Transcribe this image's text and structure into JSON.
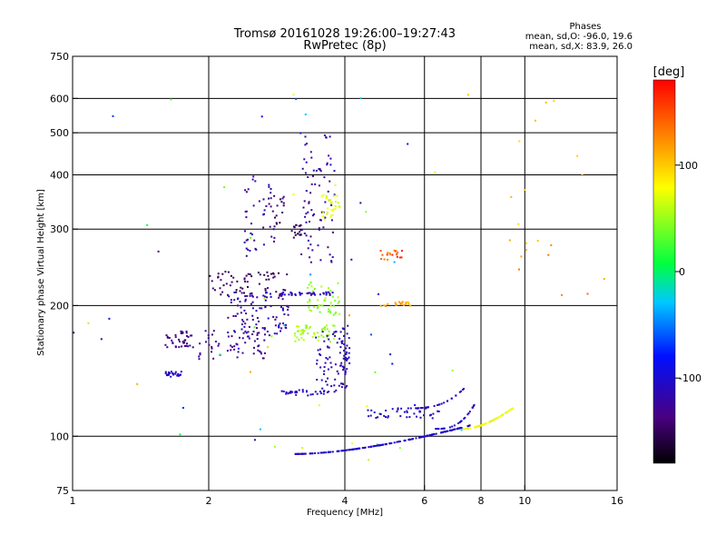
{
  "chart_data": {
    "type": "scatter",
    "title": "Tromsø 20161028 19:26:00–19:27:43",
    "subtitle": "RwPretec (8p)",
    "xlabel": "Frequency [MHz]",
    "ylabel": "Stationary phase Virtual Height [km]",
    "x_scale": "log",
    "y_scale": "log",
    "xlim": [
      1,
      16
    ],
    "ylim": [
      75,
      750
    ],
    "x_ticks": [
      1,
      2,
      4,
      6,
      8,
      10,
      16
    ],
    "x_tick_labels": [
      "1",
      "2",
      "4",
      "6",
      "8",
      "10",
      "16"
    ],
    "x_gridlines": [
      2,
      4,
      6,
      8,
      10
    ],
    "y_ticks": [
      75,
      100,
      200,
      300,
      400,
      500,
      600,
      750
    ],
    "y_tick_labels": [
      "75",
      "100",
      "200",
      "300",
      "400",
      "500",
      "600",
      "750"
    ],
    "y_gridlines": [
      100,
      200,
      300,
      400,
      500,
      600
    ],
    "grid": true,
    "stats": {
      "heading": "Phases",
      "line_o": "mean, sd,O: -96.0, 19.6",
      "line_x": "mean, sd,X:  83.9, 26.0"
    },
    "colorbar": {
      "label": "[deg]",
      "ticks": [
        100,
        0,
        -100
      ],
      "tick_labels": [
        "100",
        "0",
        "-100"
      ],
      "range": [
        -180,
        180
      ]
    },
    "clusters": [
      {
        "x": [
          1.6,
          1.85
        ],
        "y": [
          160,
          175
        ],
        "n": 40,
        "phase": [
          -120,
          -150
        ]
      },
      {
        "x": [
          1.6,
          1.75
        ],
        "y": [
          137,
          141
        ],
        "n": 25,
        "phase": [
          -100,
          -110
        ]
      },
      {
        "x": [
          1.9,
          2.7
        ],
        "y": [
          150,
          175
        ],
        "n": 60,
        "phase": [
          -115,
          -140
        ]
      },
      {
        "x": [
          2.2,
          3.0
        ],
        "y": [
          170,
          215
        ],
        "n": 100,
        "phase": [
          -100,
          -140
        ]
      },
      {
        "x": [
          2.0,
          3.0
        ],
        "y": [
          210,
          240
        ],
        "n": 60,
        "phase": [
          -130,
          -160
        ]
      },
      {
        "x": [
          2.4,
          2.8
        ],
        "y": [
          260,
          410
        ],
        "n": 40,
        "phase": [
          -110,
          -135
        ]
      },
      {
        "x": [
          2.7,
          2.95
        ],
        "y": [
          300,
          360
        ],
        "n": 20,
        "phase": [
          -130,
          -160
        ]
      },
      {
        "x": [
          3.05,
          3.2
        ],
        "y": [
          285,
          310
        ],
        "n": 20,
        "phase": [
          -140,
          -165
        ]
      },
      {
        "x": [
          3.2,
          3.8
        ],
        "y": [
          250,
          500
        ],
        "n": 80,
        "phase": [
          -105,
          -140
        ]
      },
      {
        "x": [
          3.55,
          3.9
        ],
        "y": [
          315,
          360
        ],
        "n": 30,
        "phase": [
          60,
          80
        ]
      },
      {
        "x": [
          3.1,
          3.8
        ],
        "y": [
          165,
          180
        ],
        "n": 50,
        "phase": [
          40,
          65
        ]
      },
      {
        "x": [
          3.3,
          3.9
        ],
        "y": [
          190,
          230
        ],
        "n": 45,
        "phase": [
          35,
          60
        ]
      },
      {
        "x": [
          2.9,
          3.8
        ],
        "y": [
          211,
          215
        ],
        "n": 35,
        "phase": [
          -100,
          -120
        ]
      },
      {
        "x": [
          3.45,
          4.05
        ],
        "y": [
          125,
          175
        ],
        "n": 70,
        "phase": [
          -105,
          -120
        ]
      },
      {
        "x": [
          2.9,
          3.7
        ],
        "y": [
          124,
          128
        ],
        "n": 30,
        "phase": [
          -100,
          -115
        ]
      },
      {
        "x": [
          3.9,
          4.1
        ],
        "y": [
          140,
          180
        ],
        "n": 25,
        "phase": [
          -100,
          -115
        ]
      },
      {
        "x": [
          4.8,
          5.4
        ],
        "y": [
          255,
          268
        ],
        "n": 20,
        "phase": [
          120,
          175
        ]
      },
      {
        "x": [
          4.5,
          6.5
        ],
        "y": [
          110,
          116
        ],
        "n": 40,
        "phase": [
          -100,
          -115
        ]
      },
      {
        "x": [
          4.8,
          5.6
        ],
        "y": [
          199,
          204
        ],
        "n": 20,
        "phase": [
          100,
          130
        ]
      },
      {
        "x": [
          9.0,
          15.0
        ],
        "y": [
          210,
          600
        ],
        "n": 20,
        "phase": [
          90,
          140
        ]
      },
      {
        "x": [
          1.0,
          9.0
        ],
        "y": [
          80,
          620
        ],
        "n": 60,
        "phase": [
          -150,
          120
        ]
      }
    ],
    "arcs": [
      {
        "f0": 3.1,
        "f1": 7.6,
        "h0": 91,
        "h1": 106,
        "curve": 1.7,
        "n": 170,
        "phase": [
          -100,
          -110
        ]
      },
      {
        "f0": 7.3,
        "f1": 9.4,
        "h0": 104,
        "h1": 116,
        "curve": 1.8,
        "n": 60,
        "phase": [
          60,
          90
        ]
      },
      {
        "f0": 5.5,
        "f1": 7.4,
        "h0": 116,
        "h1": 130,
        "curve": 3.0,
        "n": 30,
        "phase": [
          -100,
          -120
        ]
      },
      {
        "f0": 6.3,
        "f1": 7.9,
        "h0": 104,
        "h1": 123,
        "curve": 3.0,
        "n": 25,
        "phase": [
          -100,
          -110
        ]
      }
    ]
  }
}
